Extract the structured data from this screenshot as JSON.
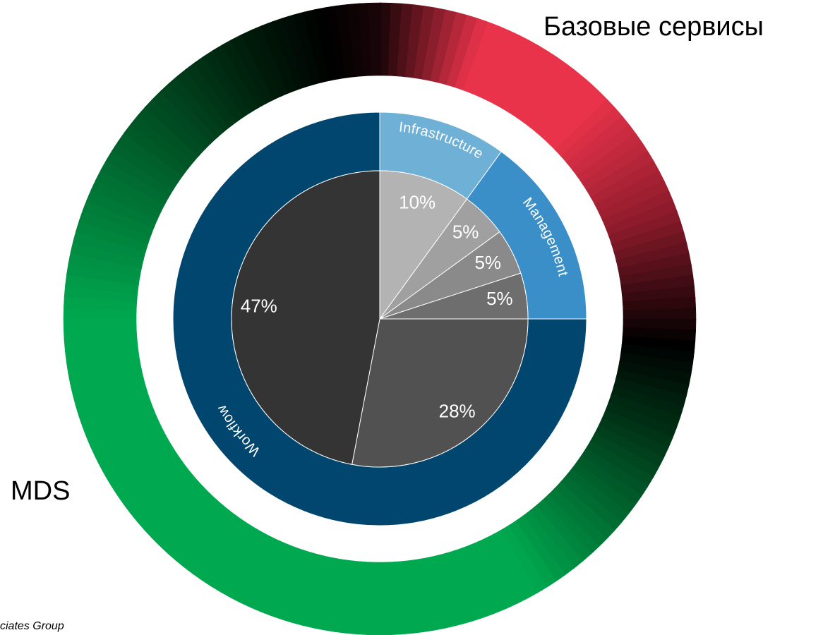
{
  "chart_data": {
    "type": "nested-pie",
    "outer_labels": [
      "Базовые сервисы",
      "MDS"
    ],
    "middle": {
      "categories": [
        "Infrastructure",
        "Management",
        "Workflow"
      ],
      "values": [
        10,
        15,
        75
      ],
      "colors": [
        "#6fb0d6",
        "#3a8fc8",
        "#00466f"
      ]
    },
    "inner": {
      "values": [
        10,
        5,
        5,
        5,
        28,
        47
      ],
      "value_labels": [
        "10%",
        "5%",
        "5%",
        "5%",
        "28%",
        "47%"
      ],
      "colors": [
        "#b3b3b3",
        "#a0a0a0",
        "#8a8a8a",
        "#6e6e6e",
        "#515151",
        "#343434"
      ]
    },
    "footer": "ciates Group"
  }
}
